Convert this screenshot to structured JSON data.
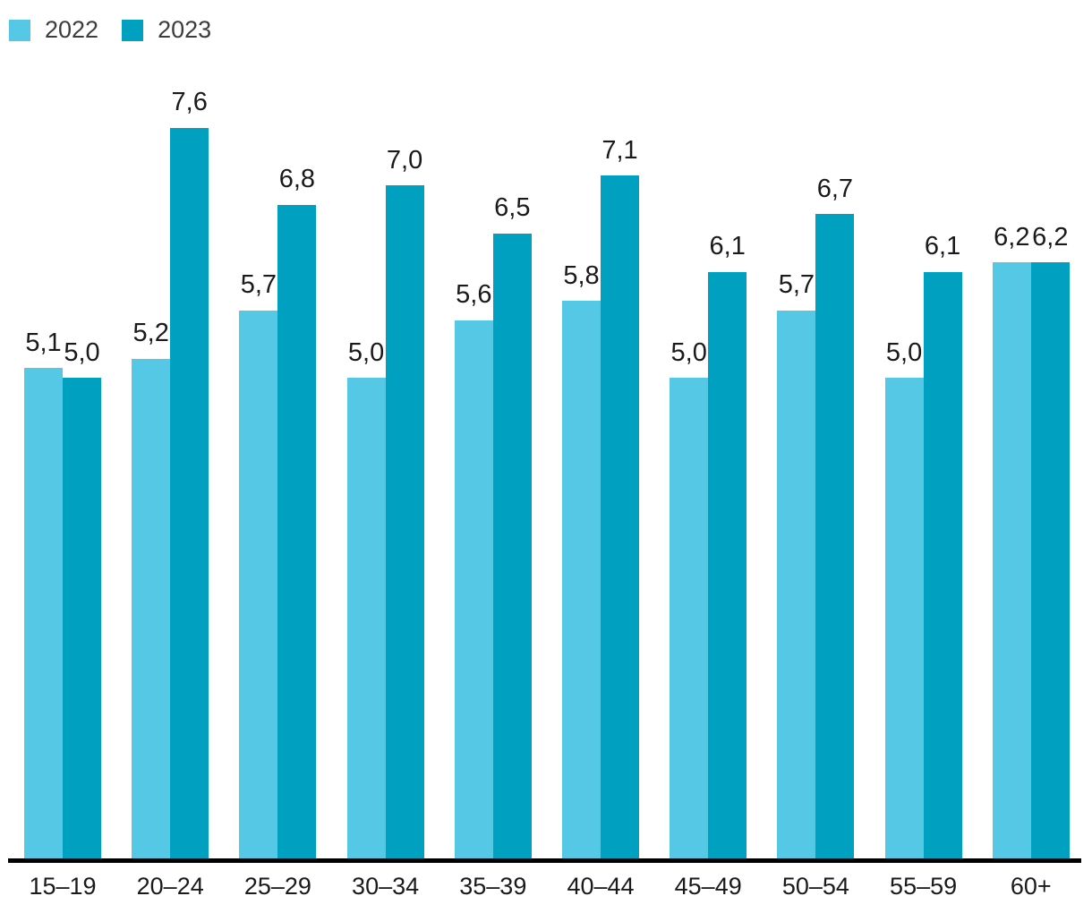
{
  "legend": {
    "items": [
      {
        "label": "2022",
        "color": "#55C8E6"
      },
      {
        "label": "2023",
        "color": "#00A0C1"
      }
    ]
  },
  "chart_data": {
    "type": "bar",
    "categories": [
      "15–19",
      "20–24",
      "25–29",
      "30–34",
      "35–39",
      "40–44",
      "45–49",
      "50–54",
      "55–59",
      "60+"
    ],
    "series": [
      {
        "name": "2022",
        "color": "#55C8E6",
        "values": [
          5.1,
          5.2,
          5.7,
          5.0,
          5.6,
          5.8,
          5.0,
          5.7,
          5.0,
          6.2
        ],
        "labels": [
          "5,1",
          "5,2",
          "5,7",
          "5,0",
          "5,6",
          "5,8",
          "5,0",
          "5,7",
          "5,0",
          "6,2"
        ]
      },
      {
        "name": "2023",
        "color": "#00A0C1",
        "values": [
          5.0,
          7.6,
          6.8,
          7.0,
          6.5,
          7.1,
          6.1,
          6.7,
          6.1,
          6.2
        ],
        "labels": [
          "5,0",
          "7,6",
          "6,8",
          "7,0",
          "6,5",
          "7,1",
          "6,1",
          "6,7",
          "6,1",
          "6,2"
        ]
      }
    ],
    "title": "",
    "xlabel": "",
    "ylabel": "",
    "ylim": [
      0,
      8
    ],
    "grid": false,
    "y_axis_visible": false,
    "legend_position": "top-left",
    "value_labels": "above-bars, comma decimal separator",
    "axis_line_color": "#000000",
    "text_color": "#1a1a1a"
  }
}
